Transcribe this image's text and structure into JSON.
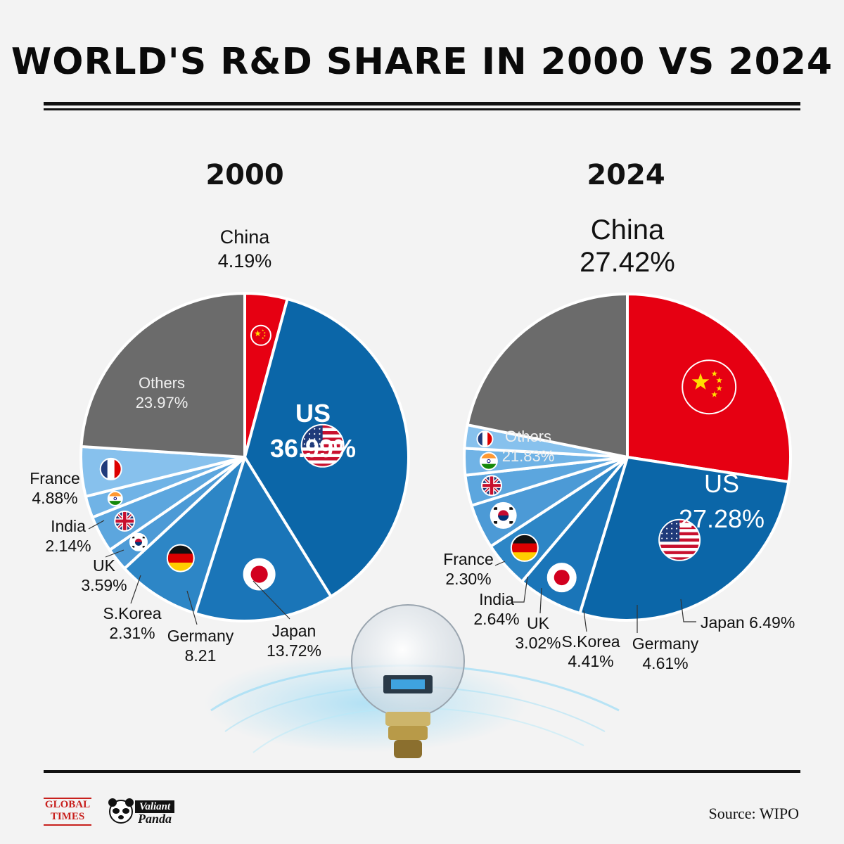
{
  "title": "WORLD'S R&D SHARE IN 2000 VS 2024",
  "chart_data": [
    {
      "type": "pie",
      "title": "2000",
      "slices": [
        {
          "label": "China",
          "value": 4.19,
          "value_text": "4.19%",
          "color": "#e60012",
          "flag": "china-flag"
        },
        {
          "label": "US",
          "value": 36.99,
          "value_text": "36.99%",
          "color": "#0b66a8",
          "flag": "us-flag"
        },
        {
          "label": "Japan",
          "value": 13.72,
          "value_text": "13.72%",
          "color": "#1a75b8",
          "flag": "japan-flag"
        },
        {
          "label": "Germany",
          "value": 8.21,
          "value_text": "8.21",
          "color": "#2d86c6",
          "flag": "germany-flag"
        },
        {
          "label": "S.Korea",
          "value": 2.31,
          "value_text": "2.31%",
          "color": "#4c9ad6",
          "flag": "korea-flag"
        },
        {
          "label": "UK",
          "value": 3.59,
          "value_text": "3.59%",
          "color": "#5ca6de",
          "flag": "uk-flag"
        },
        {
          "label": "India",
          "value": 2.14,
          "value_text": "2.14%",
          "color": "#70b3e6",
          "flag": "india-flag"
        },
        {
          "label": "France",
          "value": 4.88,
          "value_text": "4.88%",
          "color": "#87c1ed",
          "flag": "france-flag"
        },
        {
          "label": "Others",
          "value": 23.97,
          "value_text": "23.97%",
          "color": "#6b6b6b",
          "flag": ""
        }
      ]
    },
    {
      "type": "pie",
      "title": "2024",
      "slices": [
        {
          "label": "China",
          "value": 27.42,
          "value_text": "27.42%",
          "color": "#e60012",
          "flag": "china-flag"
        },
        {
          "label": "US",
          "value": 27.28,
          "value_text": "27.28%",
          "color": "#0b66a8",
          "flag": "us-flag"
        },
        {
          "label": "Japan",
          "value": 6.49,
          "value_text": "6.49%",
          "color": "#1a75b8",
          "flag": "japan-flag"
        },
        {
          "label": "Germany",
          "value": 4.61,
          "value_text": "4.61%",
          "color": "#2d86c6",
          "flag": "germany-flag"
        },
        {
          "label": "S.Korea",
          "value": 4.41,
          "value_text": "4.41%",
          "color": "#4c9ad6",
          "flag": "korea-flag"
        },
        {
          "label": "UK",
          "value": 3.02,
          "value_text": "3.02%",
          "color": "#5ca6de",
          "flag": "uk-flag"
        },
        {
          "label": "India",
          "value": 2.64,
          "value_text": "2.64%",
          "color": "#70b3e6",
          "flag": "india-flag"
        },
        {
          "label": "France",
          "value": 2.3,
          "value_text": "2.30%",
          "color": "#87c1ed",
          "flag": "france-flag"
        },
        {
          "label": "Others",
          "value": 21.83,
          "value_text": "21.83%",
          "color": "#6b6b6b",
          "flag": ""
        }
      ]
    }
  ],
  "footer": {
    "global_times": "GLOBAL TIMES",
    "valiant": "Valiant",
    "panda": "Panda",
    "source": "Source: WIPO"
  }
}
